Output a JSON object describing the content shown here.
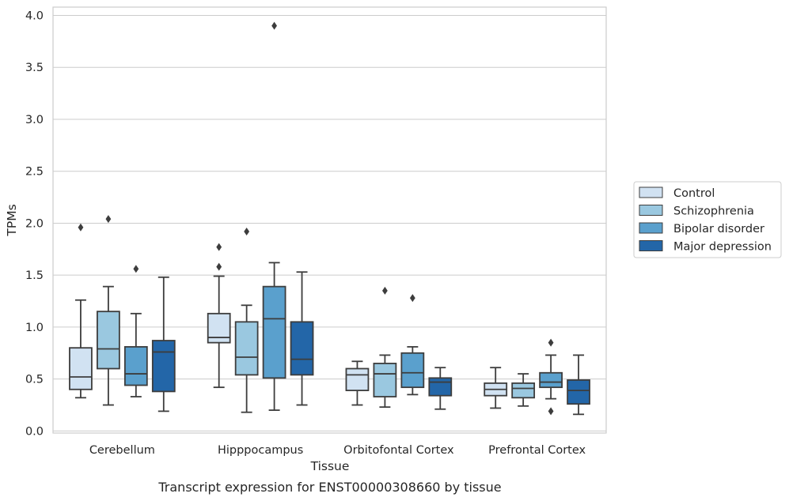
{
  "chart_data": {
    "type": "box",
    "title": "",
    "caption": "Transcript expression for ENST00000308660 by tissue",
    "xlabel": "Tissue",
    "ylabel": "TPMs",
    "ylim": [
      -0.02,
      4.08
    ],
    "yticks": [
      "0.0",
      "0.5",
      "1.0",
      "1.5",
      "2.0",
      "2.5",
      "3.0",
      "3.5",
      "4.0"
    ],
    "grid": "horizontal",
    "legend_position": "right",
    "categories": [
      "Cerebellum",
      "Hipppocampus",
      "Orbitofontal Cortex",
      "Prefrontal Cortex"
    ],
    "series": [
      {
        "name": "Control",
        "color": "#d1e2f2",
        "boxes": [
          {
            "whislo": 0.32,
            "q1": 0.4,
            "med": 0.52,
            "q3": 0.8,
            "whishi": 1.26,
            "fliers": [
              1.96
            ]
          },
          {
            "whislo": 0.42,
            "q1": 0.85,
            "med": 0.9,
            "q3": 1.13,
            "whishi": 1.49,
            "fliers": [
              1.58,
              1.77
            ]
          },
          {
            "whislo": 0.25,
            "q1": 0.39,
            "med": 0.54,
            "q3": 0.6,
            "whishi": 0.67,
            "fliers": []
          },
          {
            "whislo": 0.22,
            "q1": 0.34,
            "med": 0.4,
            "q3": 0.46,
            "whishi": 0.61,
            "fliers": []
          }
        ]
      },
      {
        "name": "Schizophrenia",
        "color": "#9ac8e0",
        "boxes": [
          {
            "whislo": 0.25,
            "q1": 0.6,
            "med": 0.79,
            "q3": 1.15,
            "whishi": 1.39,
            "fliers": [
              2.04
            ]
          },
          {
            "whislo": 0.18,
            "q1": 0.54,
            "med": 0.71,
            "q3": 1.05,
            "whishi": 1.21,
            "fliers": [
              1.92
            ]
          },
          {
            "whislo": 0.23,
            "q1": 0.33,
            "med": 0.55,
            "q3": 0.65,
            "whishi": 0.73,
            "fliers": [
              1.35
            ]
          },
          {
            "whislo": 0.24,
            "q1": 0.32,
            "med": 0.41,
            "q3": 0.46,
            "whishi": 0.55,
            "fliers": []
          }
        ]
      },
      {
        "name": "Bipolar disorder",
        "color": "#5aa0cd",
        "boxes": [
          {
            "whislo": 0.33,
            "q1": 0.44,
            "med": 0.55,
            "q3": 0.81,
            "whishi": 1.13,
            "fliers": [
              1.56
            ]
          },
          {
            "whislo": 0.2,
            "q1": 0.51,
            "med": 1.08,
            "q3": 1.39,
            "whishi": 1.62,
            "fliers": [
              3.9
            ]
          },
          {
            "whislo": 0.35,
            "q1": 0.42,
            "med": 0.56,
            "q3": 0.75,
            "whishi": 0.81,
            "fliers": [
              1.28
            ]
          },
          {
            "whislo": 0.31,
            "q1": 0.42,
            "med": 0.47,
            "q3": 0.56,
            "whishi": 0.73,
            "fliers": [
              0.85,
              0.19
            ]
          }
        ]
      },
      {
        "name": "Major depression",
        "color": "#2366a8",
        "boxes": [
          {
            "whislo": 0.19,
            "q1": 0.38,
            "med": 0.76,
            "q3": 0.87,
            "whishi": 1.48,
            "fliers": []
          },
          {
            "whislo": 0.25,
            "q1": 0.54,
            "med": 0.69,
            "q3": 1.05,
            "whishi": 1.53,
            "fliers": []
          },
          {
            "whislo": 0.21,
            "q1": 0.34,
            "med": 0.47,
            "q3": 0.51,
            "whishi": 0.61,
            "fliers": []
          },
          {
            "whislo": 0.16,
            "q1": 0.26,
            "med": 0.39,
            "q3": 0.49,
            "whishi": 0.73,
            "fliers": []
          }
        ]
      }
    ]
  }
}
